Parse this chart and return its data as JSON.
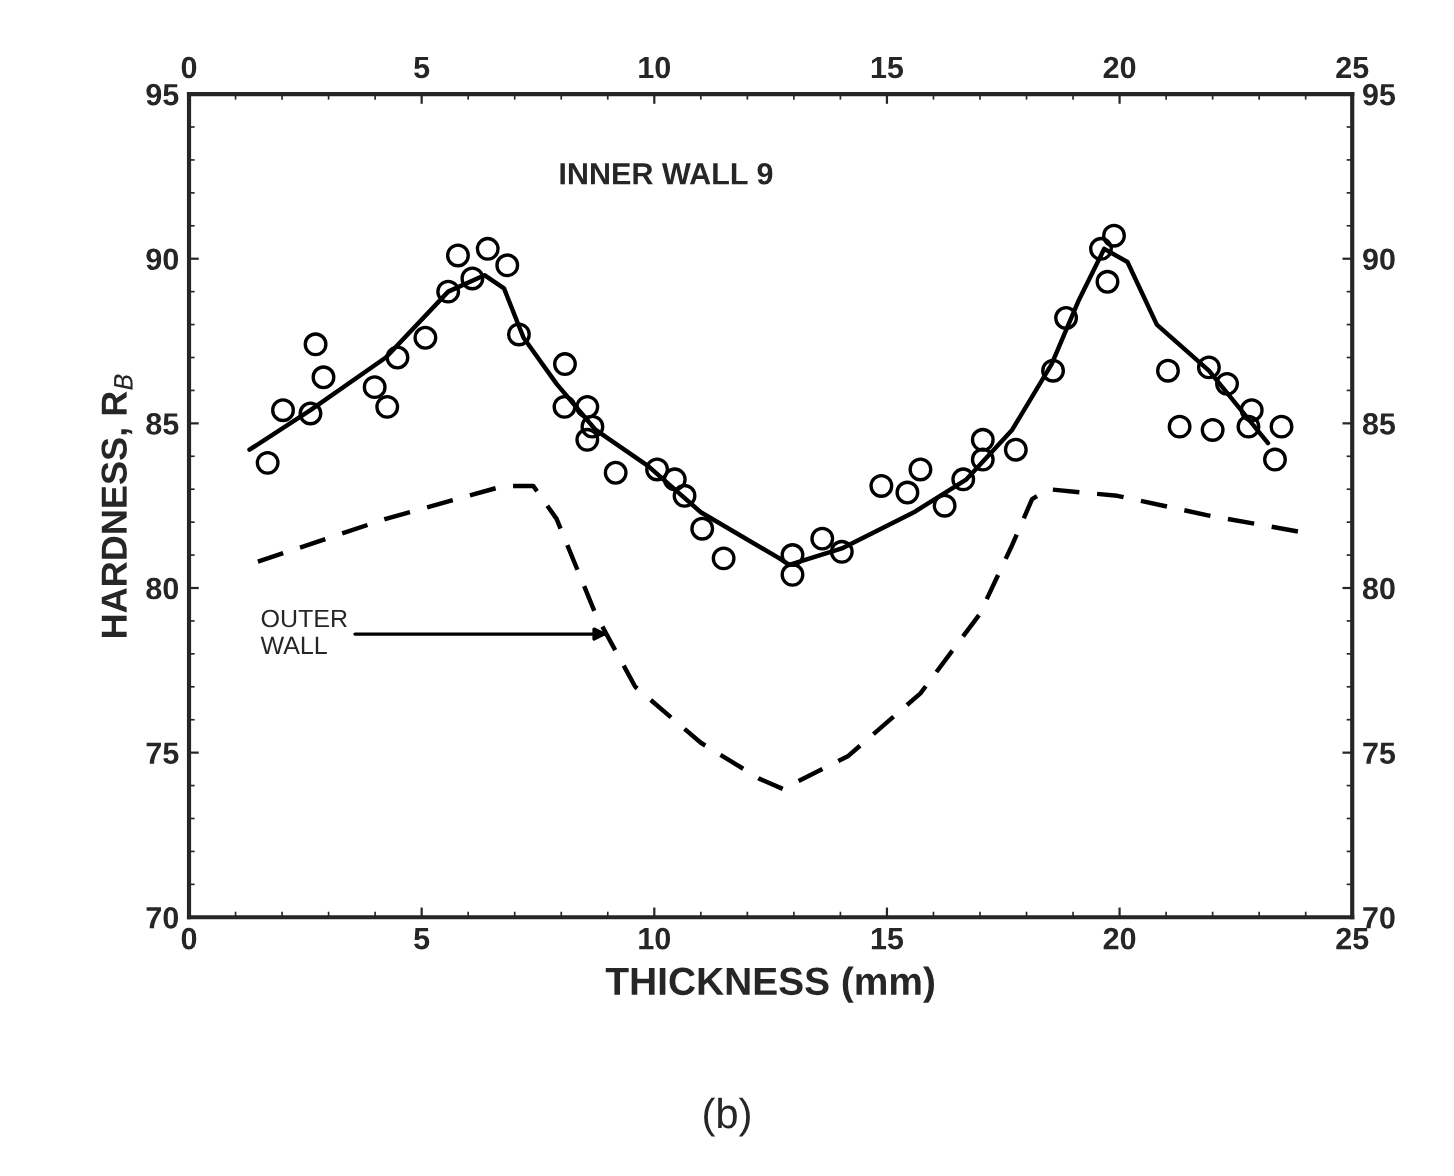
{
  "chart_data": {
    "type": "scatter",
    "xlabel": "THICKNESS (mm)",
    "ylabel": "HARDNESS, R$_{B}$",
    "xlim": [
      0,
      25
    ],
    "xticks": [
      0,
      5,
      10,
      15,
      20,
      25
    ],
    "ylim": [
      70,
      95
    ],
    "yticks": [
      70,
      75,
      80,
      85,
      90,
      95
    ],
    "x2lim": [
      0,
      25
    ],
    "x2ticks": [
      0,
      5,
      10,
      15,
      20,
      25
    ],
    "y2lim": [
      70,
      95
    ],
    "y2ticks": [
      70,
      75,
      80,
      85,
      90,
      95
    ],
    "grid": false,
    "legend": false,
    "series": [
      {
        "marker": "circle",
        "color": "#000000",
        "x": [
          1.69,
          2.02,
          2.61,
          2.72,
          2.89,
          3.99,
          4.26,
          4.48,
          5.08,
          5.57,
          5.78,
          6.09,
          6.42,
          6.84,
          7.09,
          8.08,
          8.07,
          8.56,
          8.67,
          8.56,
          9.17,
          10.06,
          10.44,
          10.65,
          11.03,
          11.49,
          12.97,
          12.97,
          13.61,
          14.03,
          14.88,
          15.44,
          15.72,
          16.24,
          16.64,
          17.06,
          17.06,
          17.77,
          18.57,
          18.85,
          19.6,
          19.88,
          19.74,
          21.04,
          21.29,
          21.92,
          22.0,
          22.31,
          22.84,
          22.77,
          23.48,
          23.34
        ],
        "values": [
          83.8,
          85.4,
          85.3,
          87.4,
          86.4,
          86.1,
          85.5,
          87.0,
          87.6,
          89.0,
          90.1,
          89.4,
          90.3,
          89.8,
          87.7,
          86.8,
          85.5,
          85.5,
          84.9,
          84.5,
          83.5,
          83.6,
          83.3,
          82.8,
          81.8,
          80.9,
          81.0,
          80.4,
          81.5,
          81.1,
          83.1,
          82.9,
          83.6,
          82.5,
          83.3,
          83.9,
          84.5,
          84.2,
          86.6,
          88.2,
          90.3,
          90.7,
          89.3,
          86.6,
          84.9,
          86.7,
          84.8,
          86.2,
          85.4,
          84.9,
          84.9,
          83.9
        ]
      },
      {
        "type": "line",
        "line_style": "solid",
        "marker": "none",
        "color": "#000000",
        "x": [
          1.3,
          2.61,
          4.23,
          5.57,
          6.35,
          6.77,
          7.19,
          7.9,
          8.74,
          9.87,
          11.0,
          12.69,
          12.9,
          14.03,
          15.58,
          16.71,
          17.69,
          18.54,
          19.11,
          19.67,
          20.17,
          20.8,
          21.92,
          23.19
        ],
        "values": [
          84.2,
          85.4,
          87.0,
          89.0,
          89.5,
          89.1,
          87.6,
          86.2,
          84.8,
          83.7,
          82.3,
          80.9,
          80.7,
          81.2,
          82.3,
          83.3,
          84.8,
          86.8,
          88.7,
          90.3,
          89.9,
          88.0,
          86.6,
          84.4
        ]
      },
      {
        "type": "line",
        "line_style": "dashed",
        "marker": "none",
        "color": "#000000",
        "x": [
          1.48,
          4.23,
          6.77,
          7.4,
          7.9,
          8.74,
          9.59,
          11.0,
          12.27,
          12.76,
          14.17,
          15.72,
          16.99,
          17.69,
          18.12,
          18.47,
          19.95,
          21.92,
          23.9
        ],
        "values": [
          80.8,
          82.1,
          83.1,
          83.1,
          82.1,
          79.2,
          77.0,
          75.3,
          74.2,
          73.9,
          74.9,
          76.8,
          79.2,
          81.3,
          82.7,
          83.0,
          82.8,
          82.2,
          81.7
        ]
      }
    ],
    "annotations": [
      "INNER WALL 9",
      {
        "text": "OUTER\nWALL",
        "x": 9.0,
        "y": 78.6
      },
      "(b)"
    ]
  }
}
